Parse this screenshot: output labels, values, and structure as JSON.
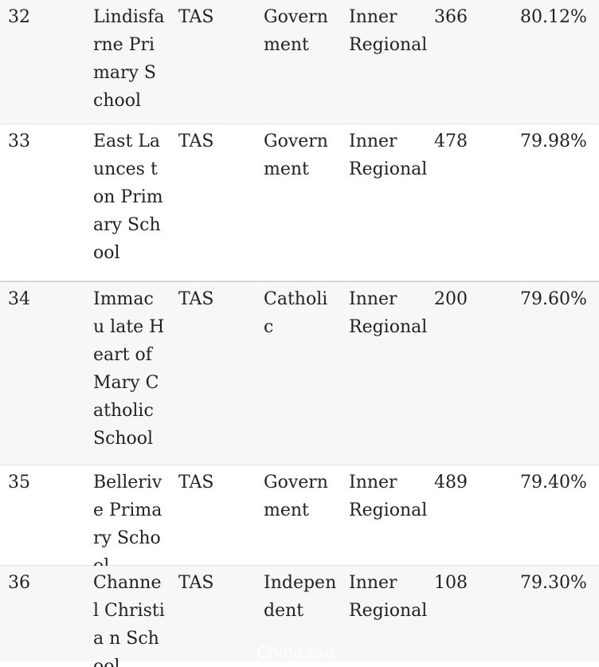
{
  "rows": [
    {
      "rank": "32",
      "name": "Lindisfa rne Primary School",
      "state": "TAS",
      "sector": "Govern ment",
      "location": "Inner Regional",
      "enrolments": "366",
      "score": "80.12%"
    },
    {
      "rank": "33",
      "name": "East Launces ton Primary School",
      "state": "TAS",
      "sector": "Govern ment",
      "location": "Inner Regional",
      "enrolments": "478",
      "score": "79.98%"
    },
    {
      "rank": "34",
      "name": "Immacu late Heart of Mary Catholic School",
      "state": "TAS",
      "sector": "Catholic",
      "location": "Inner Regional",
      "enrolments": "200",
      "score": "79.60%"
    },
    {
      "rank": "35",
      "name": "Bellerive Primary School",
      "state": "TAS",
      "sector": "Govern ment",
      "location": "Inner Regional",
      "enrolments": "489",
      "score": "79.40%"
    },
    {
      "rank": "36",
      "name": "Channel Christia n School",
      "state": "TAS",
      "sector": "Indepen dent",
      "location": "Inner Regional",
      "enrolments": "108",
      "score": "79.30%"
    }
  ],
  "watermark": "Chinaaau"
}
